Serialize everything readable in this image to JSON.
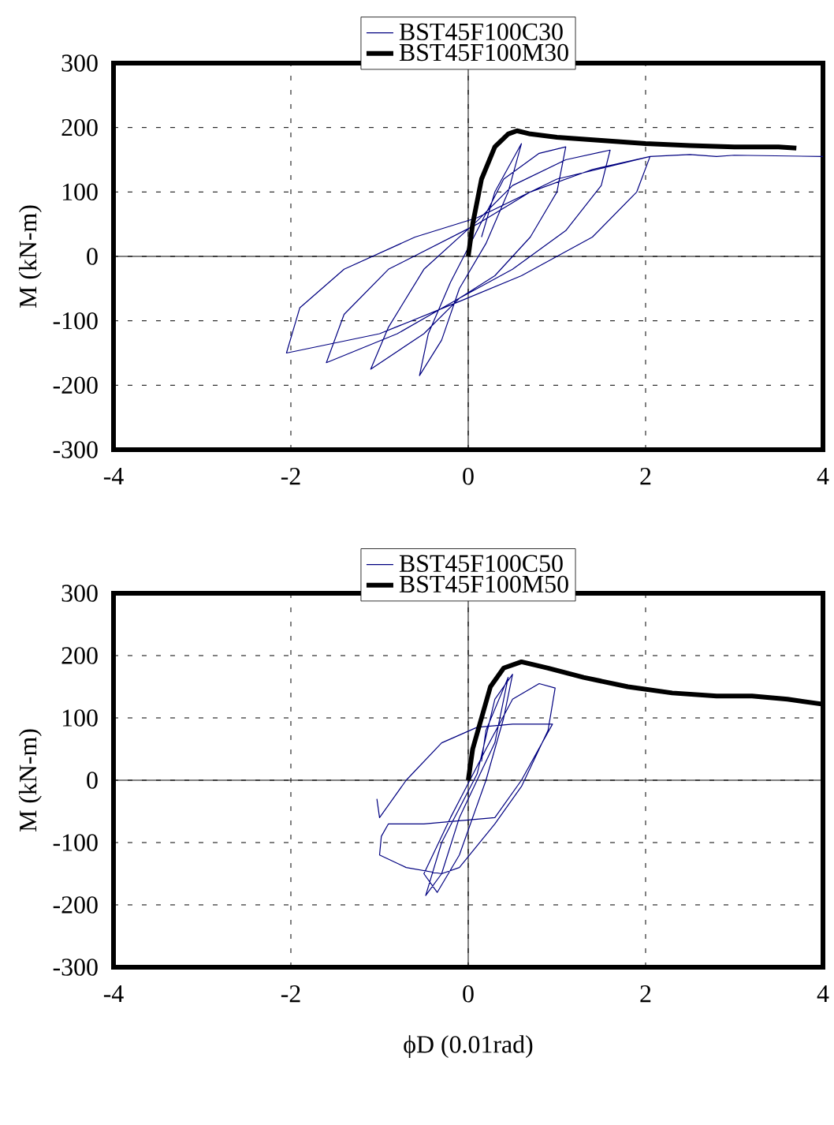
{
  "chart_data": [
    {
      "type": "line",
      "ylabel": "M (kN-m)",
      "xlim": [
        -4,
        4
      ],
      "ylim": [
        -300,
        300
      ],
      "xticks": [
        -4,
        -2,
        0,
        2,
        4
      ],
      "yticks": [
        -300,
        -200,
        -100,
        0,
        100,
        200,
        300
      ],
      "grid": true,
      "legend": "top",
      "series": [
        {
          "name": "BST45F100C30",
          "color": "#000080",
          "x": [
            0.15,
            0.3,
            0.6,
            0.45,
            0.2,
            -0.1,
            -0.3,
            -0.55,
            -0.45,
            -0.2,
            0.1,
            0.4,
            0.8,
            1.1,
            1.0,
            0.7,
            0.3,
            -0.1,
            -0.5,
            -1.1,
            -0.9,
            -0.5,
            0.1,
            0.5,
            1.1,
            1.6,
            1.5,
            1.1,
            0.5,
            -0.1,
            -0.8,
            -1.6,
            -1.4,
            -0.9,
            0.1,
            0.7,
            1.4,
            2.05,
            1.9,
            1.4,
            0.6,
            -0.1,
            -1,
            -2.05,
            -1.9,
            -1.4,
            -0.6,
            0.1,
            1,
            2.05,
            2.5,
            2.8,
            3,
            4
          ],
          "values": [
            30,
            100,
            175,
            100,
            20,
            -50,
            -130,
            -185,
            -120,
            -40,
            40,
            120,
            160,
            170,
            100,
            30,
            -30,
            -65,
            -120,
            -175,
            -110,
            -20,
            55,
            110,
            150,
            165,
            110,
            40,
            -20,
            -65,
            -120,
            -165,
            -90,
            -20,
            50,
            100,
            135,
            155,
            100,
            30,
            -30,
            -70,
            -120,
            -150,
            -80,
            -20,
            30,
            60,
            120,
            155,
            158,
            155,
            157,
            155
          ]
        },
        {
          "name": "BST45F100M30",
          "color": "#000000",
          "x": [
            0,
            0.05,
            0.15,
            0.3,
            0.45,
            0.55,
            0.7,
            1,
            1.5,
            2,
            2.5,
            3,
            3.5,
            3.7
          ],
          "values": [
            0,
            50,
            120,
            170,
            190,
            195,
            190,
            185,
            180,
            175,
            172,
            170,
            170,
            168
          ]
        }
      ]
    },
    {
      "type": "line",
      "xlabel": "ϕD (0.01rad)",
      "ylabel": "M (kN-m)",
      "xlim": [
        -4,
        4
      ],
      "ylim": [
        -300,
        300
      ],
      "xticks": [
        -4,
        -2,
        0,
        2,
        4
      ],
      "yticks": [
        -300,
        -200,
        -100,
        0,
        100,
        200,
        300
      ],
      "grid": true,
      "legend": "top",
      "series": [
        {
          "name": "BST45F100C50",
          "color": "#000080",
          "x": [
            0.15,
            0.2,
            0.45,
            0.3,
            -0.1,
            -0.3,
            -0.48,
            -0.3,
            0.1,
            0.3,
            0.5,
            0.4,
            0.2,
            -0.1,
            -0.35,
            -0.5,
            -0.2,
            0.2,
            0.5,
            0.8,
            0.98,
            0.9,
            0.6,
            0.3,
            -0.1,
            -0.3,
            -0.7,
            -1.0,
            -0.98,
            -0.9,
            -0.5,
            -0.1,
            0.3,
            0.6,
            0.95,
            0.5,
            0.1,
            -0.3,
            -0.7,
            -1.0,
            -1.03
          ],
          "values": [
            30,
            80,
            165,
            60,
            -60,
            -150,
            -185,
            -100,
            10,
            130,
            170,
            100,
            0,
            -120,
            -180,
            -150,
            -60,
            50,
            130,
            155,
            148,
            80,
            -10,
            -70,
            -140,
            -150,
            -140,
            -120,
            -90,
            -70,
            -70,
            -65,
            -60,
            0,
            90,
            90,
            85,
            60,
            0,
            -60,
            -30
          ]
        },
        {
          "name": "BST45F100M50",
          "color": "#000000",
          "x": [
            0,
            0.05,
            0.15,
            0.25,
            0.4,
            0.6,
            0.9,
            1.3,
            1.8,
            2.3,
            2.8,
            3.2,
            3.6,
            4
          ],
          "values": [
            0,
            50,
            100,
            150,
            180,
            190,
            180,
            165,
            150,
            140,
            135,
            135,
            130,
            122
          ]
        }
      ]
    }
  ]
}
